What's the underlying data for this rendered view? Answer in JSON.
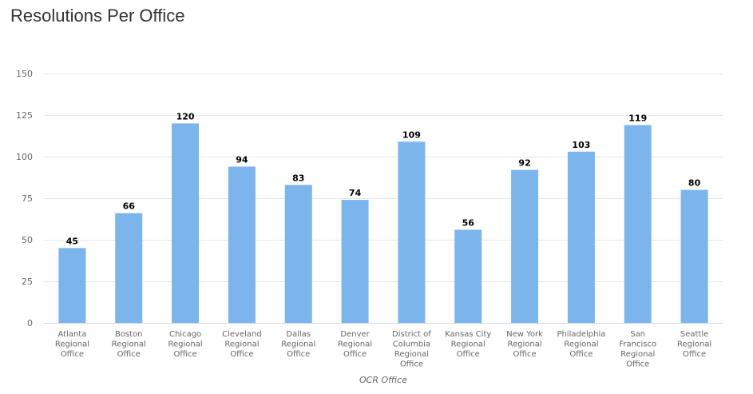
{
  "chart_data": {
    "type": "bar",
    "title": "Resolutions Per Office",
    "xlabel": "OCR Office",
    "ylabel": "",
    "ylim": [
      0,
      150
    ],
    "yticks": [
      0,
      25,
      50,
      75,
      100,
      125,
      150
    ],
    "grid": true,
    "categories": [
      "Atlanta Regional Office",
      "Boston Regional Office",
      "Chicago Regional Office",
      "Cleveland Regional Office",
      "Dallas Regional Office",
      "Denver Regional Office",
      "District of Columbia Regional Office",
      "Kansas City Regional Office",
      "New York Regional Office",
      "Philadelphia Regional Office",
      "San Francisco Regional Office",
      "Seattle Regional Office"
    ],
    "category_lines": [
      [
        "Atlanta",
        "Regional",
        "Office"
      ],
      [
        "Boston",
        "Regional",
        "Office"
      ],
      [
        "Chicago",
        "Regional",
        "Office"
      ],
      [
        "Cleveland",
        "Regional",
        "Office"
      ],
      [
        "Dallas",
        "Regional",
        "Office"
      ],
      [
        "Denver",
        "Regional",
        "Office"
      ],
      [
        "District of",
        "Columbia",
        "Regional",
        "Office"
      ],
      [
        "Kansas City",
        "Regional",
        "Office"
      ],
      [
        "New York",
        "Regional",
        "Office"
      ],
      [
        "Philadelphia",
        "Regional",
        "Office"
      ],
      [
        "San",
        "Francisco",
        "Regional",
        "Office"
      ],
      [
        "Seattle",
        "Regional",
        "Office"
      ]
    ],
    "values": [
      45,
      66,
      120,
      94,
      83,
      74,
      109,
      56,
      92,
      103,
      119,
      80
    ],
    "bar_color": "#7cb5ec"
  }
}
